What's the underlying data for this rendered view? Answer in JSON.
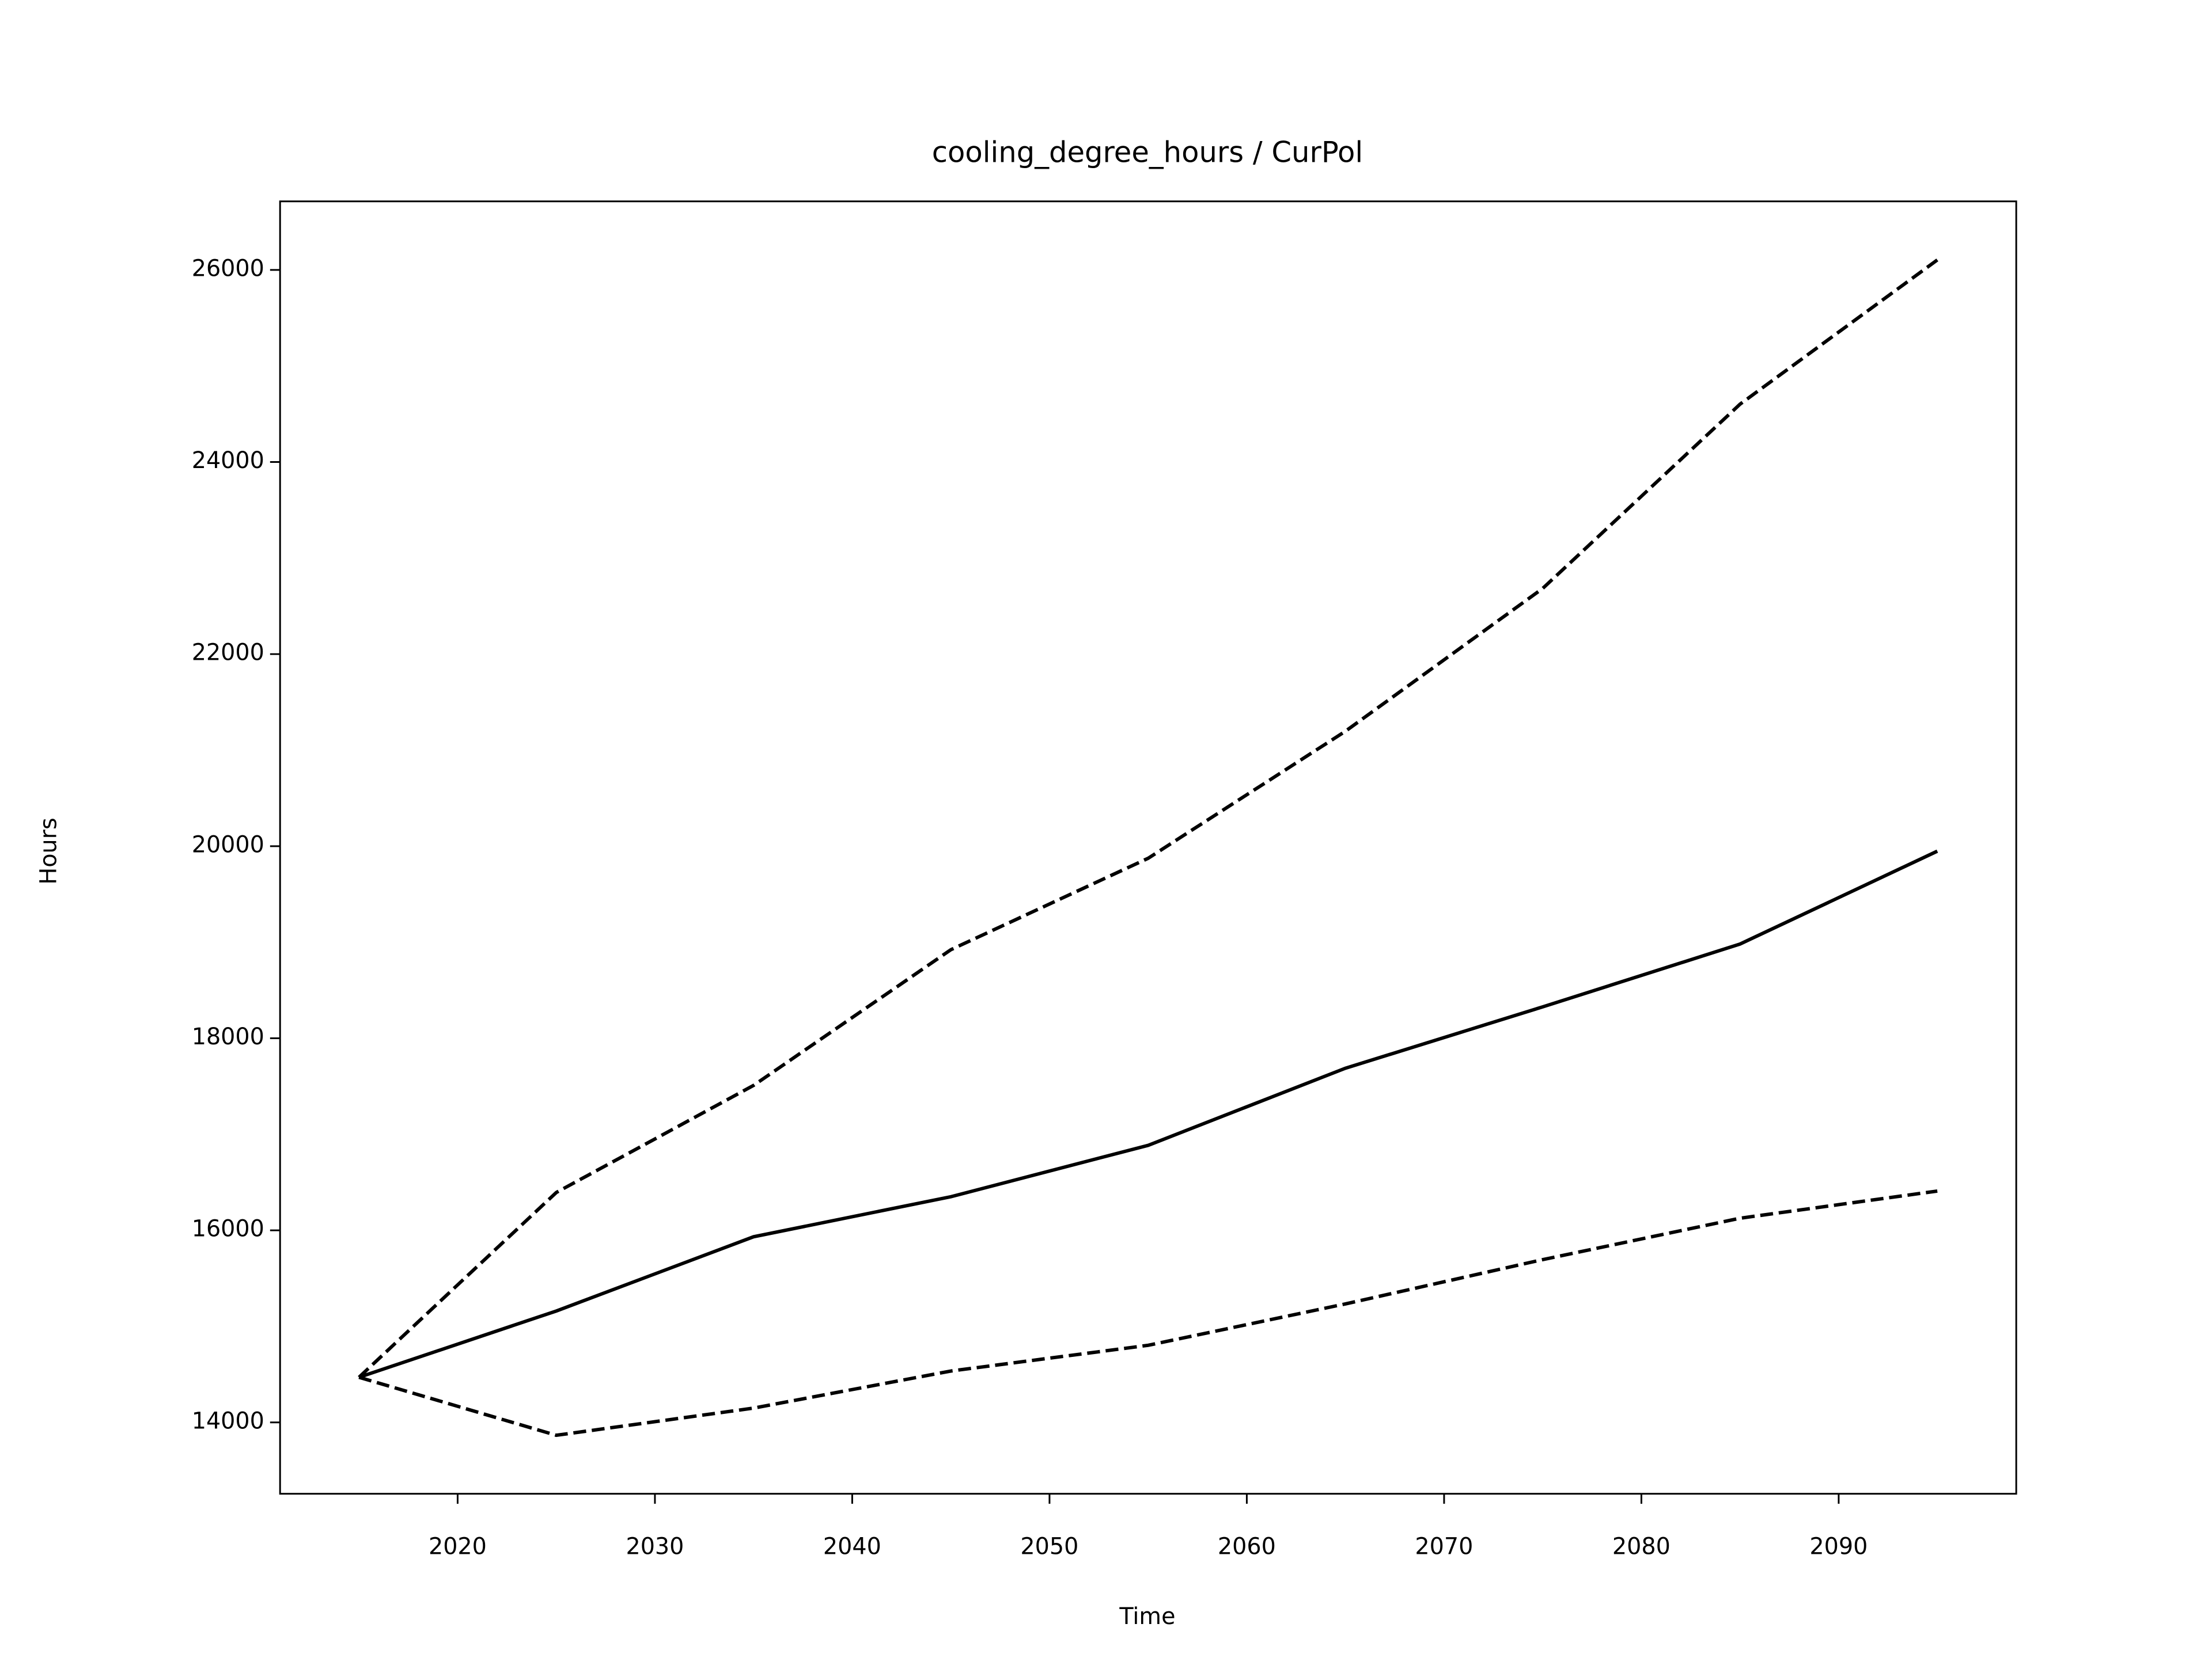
{
  "chart_data": {
    "type": "line",
    "title": "cooling_degree_hours / CurPol",
    "xlabel": "Time",
    "ylabel": "Hours",
    "x": [
      2015,
      2025,
      2035,
      2045,
      2055,
      2065,
      2075,
      2085,
      2095
    ],
    "series": [
      {
        "color": "#000000",
        "dash": "dashed",
        "values": [
          14470,
          16394,
          17509,
          18922,
          19874,
          21197,
          22684,
          24602,
          26104
        ]
      },
      {
        "color": "#000000",
        "dash": "solid",
        "values": [
          14470,
          15160,
          15933,
          16350,
          16885,
          17688,
          18327,
          18981,
          19948
        ]
      },
      {
        "color": "#000000",
        "dash": "dashed",
        "values": [
          14470,
          13866,
          14149,
          14535,
          14803,
          15234,
          15695,
          16126,
          16409
        ]
      }
    ],
    "xlim": [
      2011,
      2099
    ],
    "xticks": [
      2020,
      2030,
      2040,
      2050,
      2060,
      2070,
      2080,
      2090
    ],
    "ylim": [
      13257,
      26714
    ],
    "yticks": [
      14000,
      16000,
      18000,
      20000,
      22000,
      24000,
      26000
    ],
    "grid": false
  }
}
